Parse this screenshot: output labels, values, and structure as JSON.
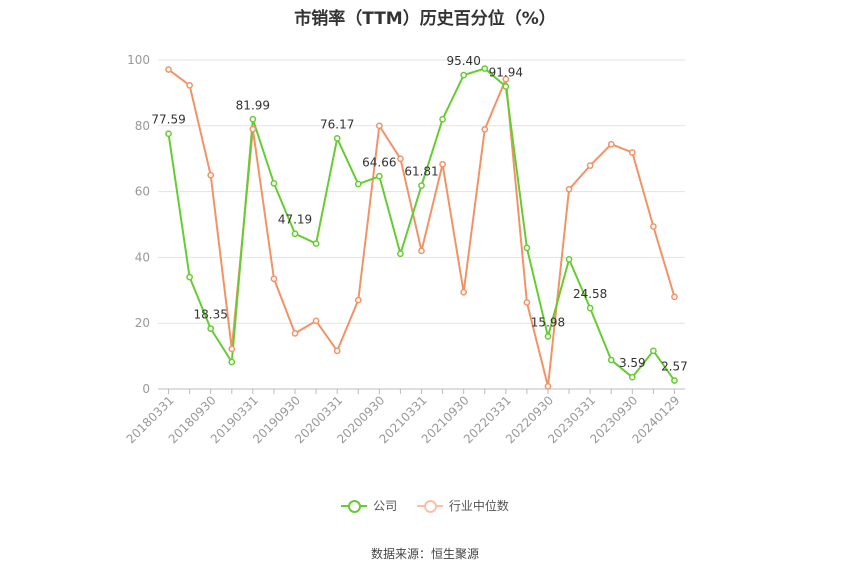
{
  "chart_data": {
    "type": "line",
    "title": "市销率（TTM）历史百分位（%）",
    "source": "数据来源：恒生聚源",
    "ylim": [
      0,
      100
    ],
    "yticks": [
      0,
      20,
      40,
      60,
      80,
      100
    ],
    "grid": true,
    "legend_position": "bottom",
    "x_tick_labels": [
      "20180331",
      "20180930",
      "20190331",
      "20190930",
      "20200331",
      "20200930",
      "20210331",
      "20210930",
      "20220331",
      "20220930",
      "20230331",
      "20230930",
      "20240129"
    ],
    "x": [
      "20180331",
      "20180630",
      "20180930",
      "20181231",
      "20190331",
      "20190630",
      "20190930",
      "20191231",
      "20200331",
      "20200630",
      "20200930",
      "20201231",
      "20210331",
      "20210630",
      "20210930",
      "20211231",
      "20220331",
      "20220630",
      "20220930",
      "20221231",
      "20230331",
      "20230630",
      "20230930",
      "20231231",
      "20240129"
    ],
    "series": [
      {
        "name": "公司",
        "color": "#66cc33",
        "values": [
          77.59,
          34.0,
          18.35,
          8.2,
          81.99,
          62.5,
          47.19,
          44.2,
          76.17,
          62.3,
          64.66,
          41.1,
          61.81,
          82.0,
          95.4,
          97.4,
          91.94,
          42.9,
          15.98,
          39.4,
          24.58,
          8.8,
          3.59,
          11.6,
          2.57
        ]
      },
      {
        "name": "行业中位数",
        "color": "#f29367",
        "values": [
          97.1,
          92.3,
          65.0,
          12.2,
          79.0,
          33.5,
          16.9,
          20.7,
          11.6,
          27.0,
          80.0,
          70.0,
          42.0,
          68.3,
          29.4,
          78.9,
          94.2,
          26.3,
          0.8,
          60.7,
          67.9,
          74.4,
          71.9,
          49.4,
          28.0
        ]
      }
    ],
    "annotations": [
      {
        "series": 0,
        "index": 0,
        "text": "77.59"
      },
      {
        "series": 0,
        "index": 2,
        "text": "18.35"
      },
      {
        "series": 0,
        "index": 4,
        "text": "81.99"
      },
      {
        "series": 0,
        "index": 6,
        "text": "47.19"
      },
      {
        "series": 0,
        "index": 8,
        "text": "76.17"
      },
      {
        "series": 0,
        "index": 10,
        "text": "64.66"
      },
      {
        "series": 0,
        "index": 12,
        "text": "61.81"
      },
      {
        "series": 0,
        "index": 14,
        "text": "95.40"
      },
      {
        "series": 0,
        "index": 16,
        "text": "91.94"
      },
      {
        "series": 0,
        "index": 18,
        "text": "15.98"
      },
      {
        "series": 0,
        "index": 20,
        "text": "24.58"
      },
      {
        "series": 0,
        "index": 22,
        "text": "3.59"
      },
      {
        "series": 0,
        "index": 24,
        "text": "2.57"
      }
    ]
  }
}
